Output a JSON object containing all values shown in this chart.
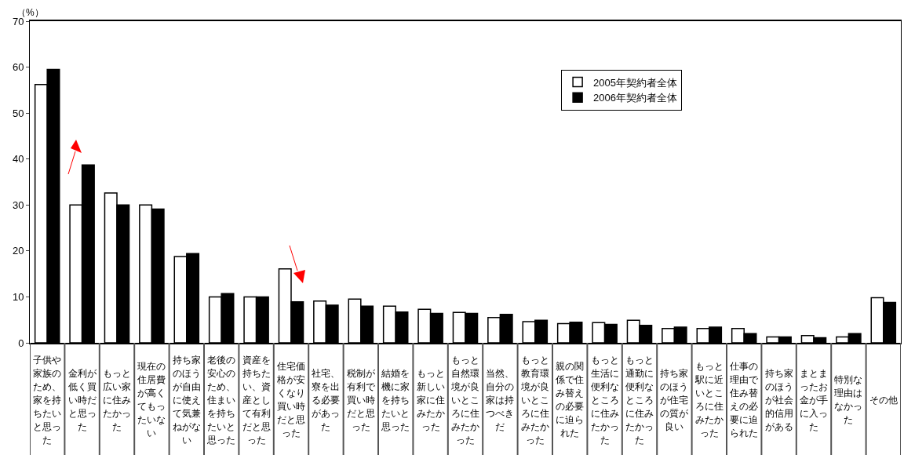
{
  "chart_data": {
    "type": "bar",
    "ylabel": "（%）",
    "categories": [
      "子供や家族のため、家を持ちたいと思った",
      "金利が低く買い時だと思った",
      "もっと広い家に住みたかった",
      "現在の住居費が高くてもったいない",
      "持ち家のほうが自由に使えて気兼ねがない",
      "老後の安心のため、住まいを持ちたいと思った",
      "資産を持ちたい、資産として有利だと思った",
      "住宅価格が安くなり買い時だと思った",
      "社宅、寮を出る必要があった",
      "税制が有利で買い時だと思った",
      "結婚を機に家を持ちたいと思った",
      "もっと新しい家に住みたかった",
      "もっと自然環境が良いところに住みたかった",
      "当然、自分の家は持つべきだ",
      "もっと教育環境が良いところに住みたかった",
      "親の関係で住み替えの必要に迫られた",
      "もっと生活に便利なところに住みたかった",
      "もっと通勤に便利なところに住みたかった",
      "持ち家のほうが住宅の質が良い",
      "もっと駅に近いところに住みたかった",
      "仕事の理由で住み替えの必要に迫られた",
      "持ち家のほうが社会的信用がある",
      "まとまったお金が手に入った",
      "特別な理由はなかった",
      "その他"
    ],
    "series": [
      {
        "name": "2005年契約者全体",
        "color": "#ffffff",
        "values": [
          56.2,
          30.0,
          32.6,
          30.0,
          18.8,
          10.0,
          10.0,
          16.1,
          9.1,
          9.5,
          8.0,
          7.3,
          6.6,
          5.5,
          4.6,
          4.2,
          4.4,
          4.9,
          3.1,
          3.1,
          3.1,
          1.3,
          1.6,
          1.3,
          9.8
        ]
      },
      {
        "name": "2006年契約者全体",
        "color": "#000000",
        "values": [
          59.5,
          38.7,
          30.0,
          29.1,
          19.4,
          10.7,
          10.0,
          8.9,
          8.2,
          8.0,
          6.7,
          6.4,
          6.4,
          6.2,
          4.9,
          4.5,
          4.0,
          3.8,
          3.4,
          3.4,
          2.0,
          1.3,
          1.1,
          2.0,
          8.8
        ]
      }
    ],
    "ylim": [
      0,
      70
    ],
    "yticks": [
      0,
      10,
      20,
      30,
      40,
      50,
      60,
      70
    ],
    "grid": false,
    "legend": "top right"
  }
}
